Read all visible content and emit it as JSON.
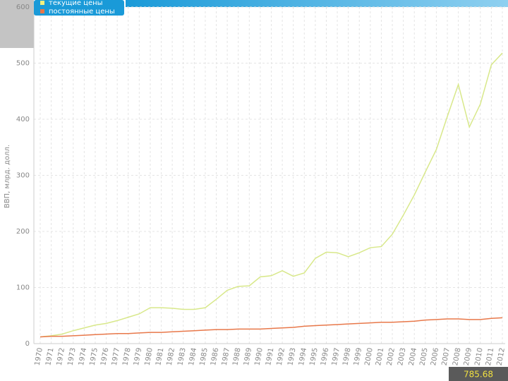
{
  "chart_data": {
    "type": "line",
    "y_label": "ВВП, млрд. долл.",
    "annotation": "785.68",
    "categories": [
      "1970",
      "1971",
      "1972",
      "1973",
      "1974",
      "1975",
      "1976",
      "1977",
      "1978",
      "1979",
      "1980",
      "1981",
      "1982",
      "1983",
      "1984",
      "1985",
      "1986",
      "1987",
      "1988",
      "1989",
      "1990",
      "1991",
      "1992",
      "1993",
      "1994",
      "1995",
      "1996",
      "1997",
      "1998",
      "1999",
      "2000",
      "2001",
      "2002",
      "2003",
      "2004",
      "2005",
      "2006",
      "2007",
      "2008",
      "2009",
      "2010",
      "2011",
      "2012"
    ],
    "series": [
      {
        "name": "текущие цены",
        "color": "#d8e88a",
        "values": [
          12,
          14,
          17,
          23,
          28,
          33,
          36,
          41,
          47,
          53,
          64,
          64,
          63,
          61,
          61,
          64,
          79,
          95,
          102,
          103,
          119,
          121,
          130,
          120,
          126,
          152,
          163,
          162,
          155,
          162,
          171,
          173,
          195,
          229,
          265,
          306,
          346,
          405,
          462,
          386,
          427,
          497,
          518
        ]
      },
      {
        "name": "постоянные цены",
        "color": "#e8784a",
        "values": [
          12,
          13,
          13,
          14,
          15,
          16,
          17,
          18,
          18,
          19,
          20,
          20,
          21,
          22,
          23,
          24,
          25,
          25,
          26,
          26,
          26,
          27,
          28,
          29,
          31,
          32,
          33,
          34,
          35,
          36,
          37,
          38,
          38,
          39,
          40,
          42,
          43,
          44,
          44,
          43,
          43,
          45,
          46
        ]
      }
    ],
    "ylim": [
      0,
      600
    ],
    "yticks": [
      0,
      100,
      200,
      300,
      400,
      500,
      600
    ],
    "grid": true
  }
}
